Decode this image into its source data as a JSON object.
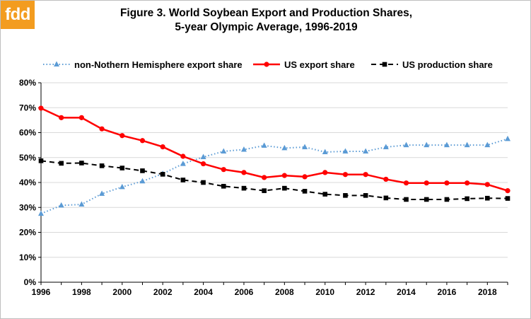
{
  "logo": {
    "text": "fdd"
  },
  "chart_data": {
    "type": "line",
    "title": "Figure 3. World Soybean Export and Production Shares,",
    "subtitle": "5-year Olympic Average, 1996-2019",
    "xlabel": "",
    "ylabel": "",
    "x": [
      1996,
      1997,
      1998,
      1999,
      2000,
      2001,
      2002,
      2003,
      2004,
      2005,
      2006,
      2007,
      2008,
      2009,
      2010,
      2011,
      2012,
      2013,
      2014,
      2015,
      2016,
      2017,
      2018,
      2019
    ],
    "xlim": [
      1996,
      2019
    ],
    "ylim": [
      0,
      80
    ],
    "x_tick_labels": [
      "1996",
      "1998",
      "2000",
      "2002",
      "2004",
      "2006",
      "2008",
      "2010",
      "2012",
      "2014",
      "2016",
      "2018"
    ],
    "y_tick_labels": [
      "0%",
      "10%",
      "20%",
      "30%",
      "40%",
      "50%",
      "60%",
      "70%",
      "80%"
    ],
    "grid": true,
    "legend_position": "top",
    "series": [
      {
        "name": "non-Nothern Hemisphere export share",
        "color": "#5b9bd5",
        "line_style": "dotted",
        "marker": "triangle",
        "values": [
          27.5,
          30.8,
          31.2,
          35.5,
          38.2,
          40.5,
          43.5,
          47.5,
          50.2,
          52.5,
          53.2,
          54.8,
          53.8,
          54.2,
          52.2,
          52.5,
          52.5,
          54.2,
          55.0,
          55.0,
          55.0,
          55.0,
          55.0,
          57.5
        ]
      },
      {
        "name": "US export share",
        "color": "#ff0000",
        "line_style": "solid",
        "marker": "circle",
        "values": [
          69.8,
          66.0,
          66.0,
          61.5,
          58.8,
          56.8,
          54.3,
          50.5,
          47.5,
          45.2,
          44.0,
          42.0,
          42.8,
          42.3,
          44.0,
          43.2,
          43.2,
          41.3,
          39.8,
          39.8,
          39.8,
          39.8,
          39.2,
          36.7
        ]
      },
      {
        "name": "US production share",
        "color": "#000000",
        "line_style": "dashed",
        "marker": "square",
        "values": [
          48.7,
          47.7,
          47.8,
          46.7,
          45.8,
          44.7,
          43.3,
          41.0,
          40.0,
          38.5,
          37.7,
          36.7,
          37.7,
          36.5,
          35.3,
          34.8,
          34.8,
          33.8,
          33.2,
          33.2,
          33.2,
          33.5,
          33.7,
          33.6
        ]
      }
    ]
  }
}
